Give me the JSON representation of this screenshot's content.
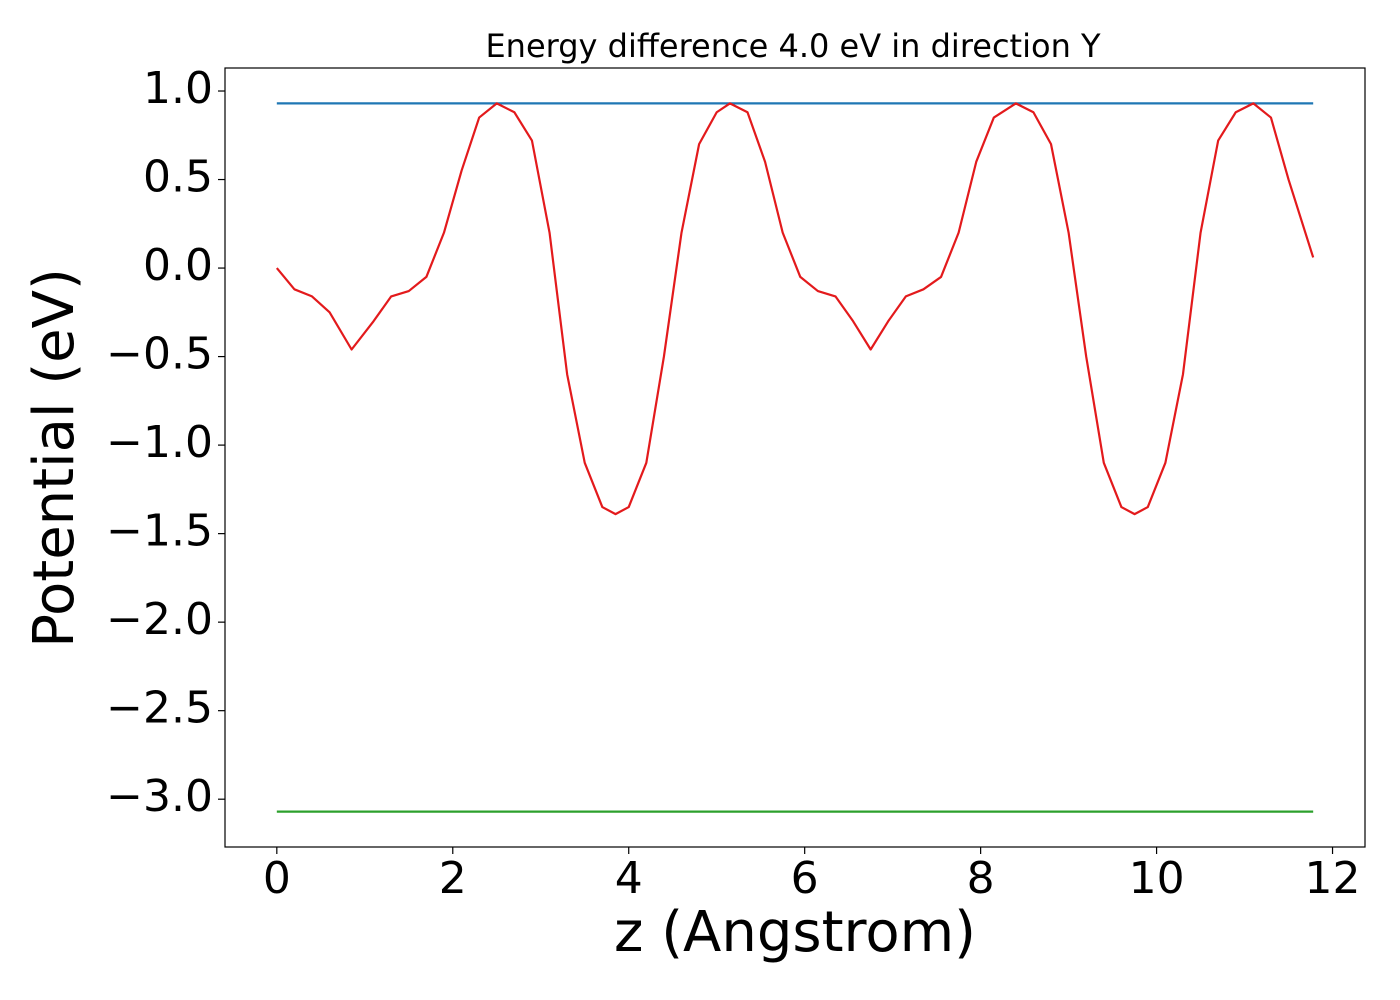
{
  "chart_data": {
    "type": "line",
    "title": "Energy difference 4.0 eV in direction Y",
    "xlabel": "z (Angstrom)",
    "ylabel": "Potential (eV)",
    "xlim": [
      -0.589,
      12.369
    ],
    "ylim": [
      -3.27,
      1.13
    ],
    "xticks": [
      0,
      2,
      4,
      6,
      8,
      10,
      12
    ],
    "yticks": [
      {
        "value": 1.0,
        "label": "1.0"
      },
      {
        "value": 0.5,
        "label": "0.5"
      },
      {
        "value": 0.0,
        "label": "0.0"
      },
      {
        "value": -0.5,
        "label": "−0.5"
      },
      {
        "value": -1.0,
        "label": "−1.0"
      },
      {
        "value": -1.5,
        "label": "−1.5"
      },
      {
        "value": -2.0,
        "label": "−2.0"
      },
      {
        "value": -2.5,
        "label": "−2.5"
      },
      {
        "value": -3.0,
        "label": "−3.0"
      }
    ],
    "grid": false,
    "series": [
      {
        "color": "#1f77b4",
        "x": [
          0,
          11.78
        ],
        "values": [
          0.93,
          0.93
        ]
      },
      {
        "color": "#2ca02c",
        "x": [
          0,
          11.78
        ],
        "values": [
          -3.07,
          -3.07
        ]
      },
      {
        "color": "#e31a1c",
        "x": [
          0,
          0.2,
          0.4,
          0.6,
          0.85,
          1.1,
          1.3,
          1.5,
          1.7,
          1.9,
          2.1,
          2.3,
          2.5,
          2.7,
          2.9,
          3.1,
          3.3,
          3.5,
          3.7,
          3.85,
          4.0,
          4.2,
          4.4,
          4.6,
          4.8,
          5.0,
          5.15,
          5.35,
          5.55,
          5.75,
          5.95,
          6.15,
          6.35,
          6.55,
          6.75,
          6.95,
          7.15,
          7.35,
          7.55,
          7.75,
          7.95,
          8.15,
          8.4,
          8.6,
          8.8,
          9.0,
          9.2,
          9.4,
          9.6,
          9.75,
          9.9,
          10.1,
          10.3,
          10.5,
          10.7,
          10.9,
          11.1,
          11.3,
          11.5,
          11.78
        ],
        "values": [
          0.0,
          -0.12,
          -0.16,
          -0.25,
          -0.46,
          -0.3,
          -0.16,
          -0.13,
          -0.05,
          0.2,
          0.55,
          0.85,
          0.93,
          0.88,
          0.72,
          0.2,
          -0.6,
          -1.1,
          -1.35,
          -1.39,
          -1.35,
          -1.1,
          -0.5,
          0.2,
          0.7,
          0.88,
          0.93,
          0.88,
          0.6,
          0.2,
          -0.05,
          -0.13,
          -0.16,
          -0.3,
          -0.46,
          -0.3,
          -0.16,
          -0.12,
          -0.05,
          0.2,
          0.6,
          0.85,
          0.93,
          0.88,
          0.7,
          0.2,
          -0.5,
          -1.1,
          -1.35,
          -1.39,
          -1.35,
          -1.1,
          -0.6,
          0.2,
          0.72,
          0.88,
          0.93,
          0.85,
          0.5,
          0.06
        ]
      }
    ]
  }
}
